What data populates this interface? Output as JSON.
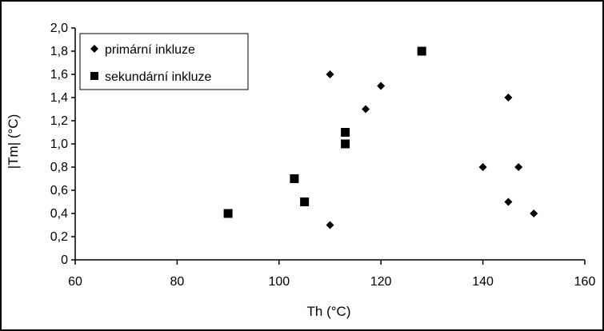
{
  "chart_data": {
    "type": "scatter",
    "xlabel": "Th (°C)",
    "ylabel": "|Tm| (°C)",
    "xlim": [
      60,
      160
    ],
    "ylim": [
      0,
      2.0
    ],
    "x_ticks": [
      "60",
      "80",
      "100",
      "120",
      "140",
      "160"
    ],
    "y_ticks": [
      "0",
      "0,2",
      "0,4",
      "0,6",
      "0,8",
      "1,0",
      "1,2",
      "1,4",
      "1,6",
      "1,8",
      "2,0"
    ],
    "grid": false,
    "legend_position": "top-left",
    "series": [
      {
        "name": "primární inkluze",
        "marker": "diamond",
        "color": "#000000",
        "points": [
          {
            "x": 110,
            "y": 1.6
          },
          {
            "x": 120,
            "y": 1.5
          },
          {
            "x": 117,
            "y": 1.3
          },
          {
            "x": 110,
            "y": 0.3
          },
          {
            "x": 145,
            "y": 1.4
          },
          {
            "x": 140,
            "y": 0.8
          },
          {
            "x": 147,
            "y": 0.8
          },
          {
            "x": 145,
            "y": 0.5
          },
          {
            "x": 150,
            "y": 0.4
          }
        ]
      },
      {
        "name": "sekundární inkluze",
        "marker": "square",
        "color": "#000000",
        "points": [
          {
            "x": 128,
            "y": 1.8
          },
          {
            "x": 113,
            "y": 1.1
          },
          {
            "x": 113,
            "y": 1.0
          },
          {
            "x": 103,
            "y": 0.7
          },
          {
            "x": 105,
            "y": 0.5
          },
          {
            "x": 90,
            "y": 0.4
          }
        ]
      }
    ]
  }
}
